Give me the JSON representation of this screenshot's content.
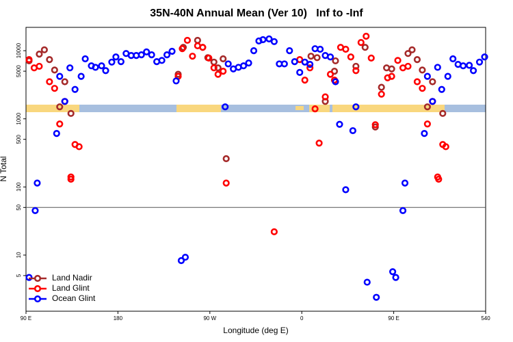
{
  "chart_data": {
    "type": "scatter",
    "title": "35N-40N Annual Mean (Ver 10)   Inf to -Inf",
    "x_label": "Longitude (deg E)",
    "y_label": "N Total",
    "log_y": true,
    "xlim": [
      90,
      540
    ],
    "ylim": [
      1.5,
      22000
    ],
    "xticks": [
      {
        "value": 90,
        "label": "90 E"
      },
      180,
      {
        "value": 270,
        "label": "90 W"
      },
      {
        "value": 360,
        "label": "0"
      },
      {
        "value": 450,
        "label": "90 E"
      },
      540
    ],
    "yticks": [
      5,
      10,
      50,
      100,
      500,
      1000,
      5000,
      10000
    ],
    "reference_line": 50,
    "legend_position": "lower left",
    "series": [
      {
        "name": "Land Nadir",
        "color": "#a52a2a",
        "x": [
          93,
          103,
          108,
          113,
          118,
          123,
          128,
          134,
          239,
          244,
          258,
          263,
          268,
          274,
          278,
          283,
          286,
          369,
          375,
          383,
          393,
          392,
          413,
          422,
          432,
          438,
          443,
          448,
          464,
          468,
          473,
          478,
          483,
          488,
          498
        ],
        "values": [
          7100,
          8900,
          10300,
          7400,
          5200,
          1500,
          3500,
          1200,
          4500,
          11200,
          14200,
          11200,
          7900,
          6800,
          5600,
          7600,
          260,
          8300,
          7900,
          1800,
          7100,
          5000,
          5900,
          11200,
          760,
          2900,
          5600,
          5400,
          9100,
          10300,
          7400,
          5200,
          1500,
          3500,
          1200
        ]
      },
      {
        "name": "Land Glint",
        "color": "#ff0000",
        "x": [
          93,
          98,
          103,
          113,
          118,
          123,
          128,
          134,
          134,
          138,
          142,
          239,
          243,
          248,
          253,
          258,
          263,
          269,
          274,
          278,
          283,
          286,
          333,
          358,
          363,
          368,
          373,
          377,
          383,
          388,
          392,
          398,
          403,
          408,
          413,
          418,
          423,
          428,
          432,
          438,
          444,
          448,
          454,
          459,
          464,
          473,
          478,
          483,
          488,
          493,
          494,
          498,
          501
        ],
        "values": [
          7400,
          5600,
          5900,
          3500,
          2800,
          840,
          1800,
          140,
          130,
          420,
          390,
          4200,
          10700,
          14200,
          8300,
          11800,
          11200,
          7800,
          5600,
          4500,
          5000,
          114,
          22,
          7400,
          3700,
          5600,
          1400,
          440,
          2100,
          4500,
          3700,
          11200,
          10500,
          8100,
          5100,
          13200,
          16300,
          7800,
          820,
          2300,
          4000,
          4200,
          7200,
          5600,
          5900,
          3500,
          2800,
          840,
          1800,
          140,
          130,
          420,
          390
        ]
      },
      {
        "name": "Ocean Glint",
        "color": "#0000ff",
        "x": [
          93,
          99,
          101,
          120,
          123,
          128,
          133,
          138,
          144,
          148,
          154,
          158,
          164,
          168,
          174,
          178,
          183,
          188,
          193,
          198,
          203,
          208,
          213,
          218,
          223,
          228,
          233,
          237,
          242,
          246,
          285,
          288,
          293,
          298,
          303,
          308,
          313,
          318,
          322,
          328,
          333,
          338,
          343,
          348,
          353,
          358,
          363,
          368,
          373,
          378,
          383,
          388,
          393,
          397,
          403,
          410,
          413,
          424,
          433,
          449,
          452,
          459,
          461,
          480,
          483,
          488,
          493,
          497,
          503,
          508,
          513,
          518,
          524,
          528,
          534,
          539
        ],
        "values": [
          4.7,
          45,
          114,
          610,
          4200,
          1800,
          5600,
          2700,
          4200,
          7600,
          6000,
          5700,
          6000,
          5100,
          6800,
          8100,
          6900,
          9100,
          8500,
          8500,
          8700,
          9600,
          8700,
          6900,
          7200,
          8700,
          9800,
          3600,
          8.3,
          9.3,
          1500,
          6400,
          5400,
          5700,
          6000,
          6600,
          10000,
          13900,
          14500,
          14900,
          13600,
          6400,
          6400,
          10000,
          6900,
          4800,
          6800,
          6300,
          10700,
          10500,
          8500,
          8100,
          3500,
          830,
          91,
          670,
          1500,
          4.0,
          2.4,
          5.7,
          4.7,
          45,
          114,
          610,
          4200,
          1800,
          5700,
          2700,
          4200,
          7600,
          6300,
          6000,
          6100,
          5100,
          6800,
          8100
        ]
      }
    ]
  }
}
